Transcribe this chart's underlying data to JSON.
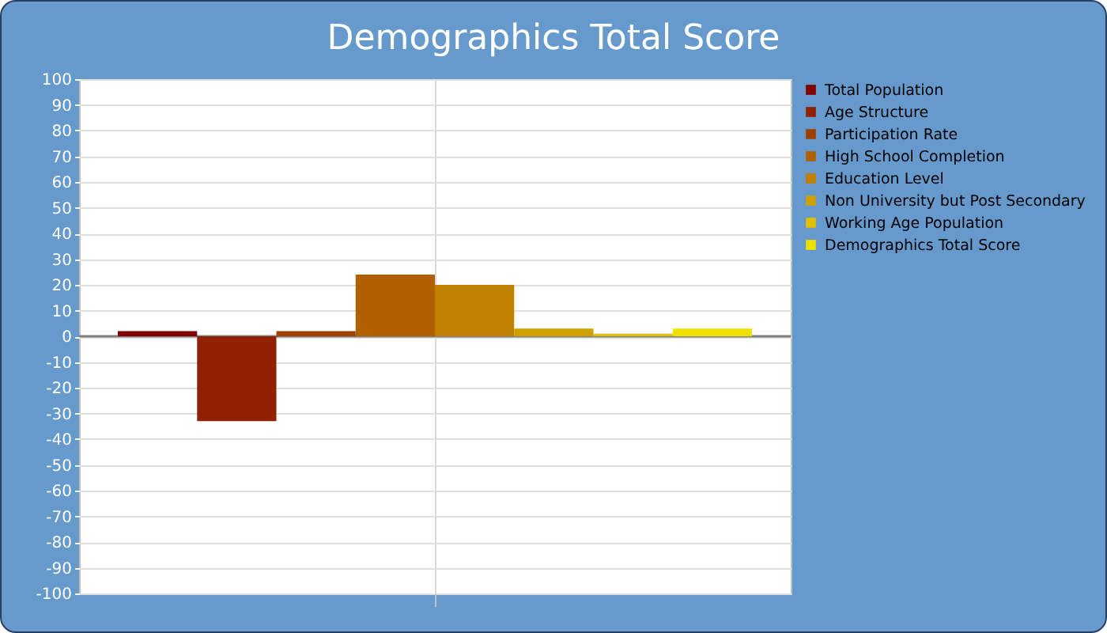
{
  "chart_data": {
    "type": "bar",
    "title": "Demographics Total Score",
    "categories": [
      null
    ],
    "series": [
      {
        "name": "Total Population",
        "color": "#800000",
        "values": [
          2
        ]
      },
      {
        "name": "Age Structure",
        "color": "#8f2000",
        "values": [
          -33
        ]
      },
      {
        "name": "Participation Rate",
        "color": "#a04000",
        "values": [
          2
        ]
      },
      {
        "name": "High School Completion",
        "color": "#b06000",
        "values": [
          24
        ]
      },
      {
        "name": "Education Level",
        "color": "#c08000",
        "values": [
          20
        ]
      },
      {
        "name": "Non University but Post Secondary",
        "color": "#d0a000",
        "values": [
          3
        ]
      },
      {
        "name": "Working Age Population",
        "color": "#e0c000",
        "values": [
          1
        ]
      },
      {
        "name": "Demographics Total Score",
        "color": "#f0e000",
        "values": [
          3
        ]
      }
    ],
    "ylim": [
      -100,
      100
    ],
    "yticks": [
      -100,
      -90,
      -80,
      -70,
      -60,
      -50,
      -40,
      -30,
      -20,
      -10,
      0,
      10,
      20,
      30,
      40,
      50,
      60,
      70,
      80,
      90,
      100
    ],
    "ref_lines": [
      {
        "axis": "y",
        "value": 0,
        "color": "#808080"
      }
    ],
    "grid": true,
    "legend": "top right",
    "tick_labels": "y"
  }
}
